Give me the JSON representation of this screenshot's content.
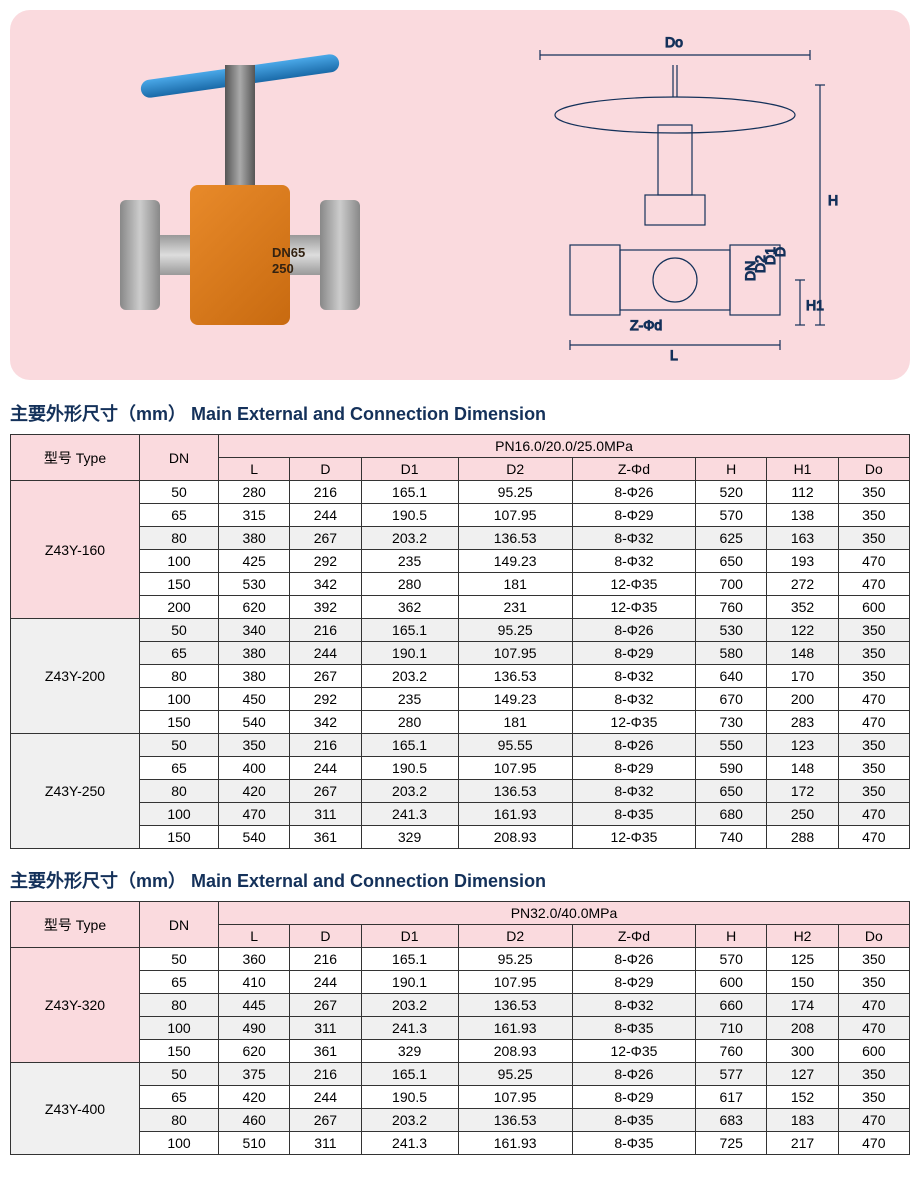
{
  "colors": {
    "panel_bg": "#fadade",
    "title_color": "#14315a",
    "border": "#333333",
    "shade_row": "#f0f0f0"
  },
  "valve_marking": {
    "line1": "DN65",
    "line2": "250"
  },
  "diagram_labels": {
    "Do": "Do",
    "H": "H",
    "H1": "H1",
    "D": "D",
    "D1": "D1",
    "D2": "D2",
    "DN": "DN",
    "L": "L",
    "Zphi": "Z-Φd"
  },
  "section1": {
    "title": "主要外形尺寸（mm） Main External and Connection Dimension",
    "header_group": "PN16.0/20.0/25.0MPa",
    "type_label": "型号 Type",
    "dn_label": "DN",
    "cols": [
      "L",
      "D",
      "D1",
      "D2",
      "Z-Φd",
      "H",
      "H1",
      "Do"
    ],
    "groups": [
      {
        "type": "Z43Y-160",
        "rows": [
          {
            "dn": "50",
            "v": [
              "280",
              "216",
              "165.1",
              "95.25",
              "8-Φ26",
              "520",
              "112",
              "350"
            ],
            "shade": false
          },
          {
            "dn": "65",
            "v": [
              "315",
              "244",
              "190.5",
              "107.95",
              "8-Φ29",
              "570",
              "138",
              "350"
            ],
            "shade": false
          },
          {
            "dn": "80",
            "v": [
              "380",
              "267",
              "203.2",
              "136.53",
              "8-Φ32",
              "625",
              "163",
              "350"
            ],
            "shade": true
          },
          {
            "dn": "100",
            "v": [
              "425",
              "292",
              "235",
              "149.23",
              "8-Φ32",
              "650",
              "193",
              "470"
            ],
            "shade": false
          },
          {
            "dn": "150",
            "v": [
              "530",
              "342",
              "280",
              "181",
              "12-Φ35",
              "700",
              "272",
              "470"
            ],
            "shade": false
          },
          {
            "dn": "200",
            "v": [
              "620",
              "392",
              "362",
              "231",
              "12-Φ35",
              "760",
              "352",
              "600"
            ],
            "shade": false
          }
        ]
      },
      {
        "type": "Z43Y-200",
        "rows": [
          {
            "dn": "50",
            "v": [
              "340",
              "216",
              "165.1",
              "95.25",
              "8-Φ26",
              "530",
              "122",
              "350"
            ],
            "shade": true
          },
          {
            "dn": "65",
            "v": [
              "380",
              "244",
              "190.1",
              "107.95",
              "8-Φ29",
              "580",
              "148",
              "350"
            ],
            "shade": true
          },
          {
            "dn": "80",
            "v": [
              "380",
              "267",
              "203.2",
              "136.53",
              "8-Φ32",
              "640",
              "170",
              "350"
            ],
            "shade": false
          },
          {
            "dn": "100",
            "v": [
              "450",
              "292",
              "235",
              "149.23",
              "8-Φ32",
              "670",
              "200",
              "470"
            ],
            "shade": false
          },
          {
            "dn": "150",
            "v": [
              "540",
              "342",
              "280",
              "181",
              "12-Φ35",
              "730",
              "283",
              "470"
            ],
            "shade": false
          }
        ]
      },
      {
        "type": "Z43Y-250",
        "rows": [
          {
            "dn": "50",
            "v": [
              "350",
              "216",
              "165.1",
              "95.55",
              "8-Φ26",
              "550",
              "123",
              "350"
            ],
            "shade": true
          },
          {
            "dn": "65",
            "v": [
              "400",
              "244",
              "190.5",
              "107.95",
              "8-Φ29",
              "590",
              "148",
              "350"
            ],
            "shade": false
          },
          {
            "dn": "80",
            "v": [
              "420",
              "267",
              "203.2",
              "136.53",
              "8-Φ32",
              "650",
              "172",
              "350"
            ],
            "shade": true
          },
          {
            "dn": "100",
            "v": [
              "470",
              "311",
              "241.3",
              "161.93",
              "8-Φ35",
              "680",
              "250",
              "470"
            ],
            "shade": true
          },
          {
            "dn": "150",
            "v": [
              "540",
              "361",
              "329",
              "208.93",
              "12-Φ35",
              "740",
              "288",
              "470"
            ],
            "shade": false
          }
        ]
      }
    ]
  },
  "section2": {
    "title": "主要外形尺寸（mm） Main External and Connection Dimension",
    "header_group": "PN32.0/40.0MPa",
    "type_label": "型号 Type",
    "dn_label": "DN",
    "cols": [
      "L",
      "D",
      "D1",
      "D2",
      "Z-Φd",
      "H",
      "H2",
      "Do"
    ],
    "groups": [
      {
        "type": "Z43Y-320",
        "rows": [
          {
            "dn": "50",
            "v": [
              "360",
              "216",
              "165.1",
              "95.25",
              "8-Φ26",
              "570",
              "125",
              "350"
            ],
            "shade": false
          },
          {
            "dn": "65",
            "v": [
              "410",
              "244",
              "190.1",
              "107.95",
              "8-Φ29",
              "600",
              "150",
              "350"
            ],
            "shade": false
          },
          {
            "dn": "80",
            "v": [
              "445",
              "267",
              "203.2",
              "136.53",
              "8-Φ32",
              "660",
              "174",
              "470"
            ],
            "shade": true
          },
          {
            "dn": "100",
            "v": [
              "490",
              "311",
              "241.3",
              "161.93",
              "8-Φ35",
              "710",
              "208",
              "470"
            ],
            "shade": true
          },
          {
            "dn": "150",
            "v": [
              "620",
              "361",
              "329",
              "208.93",
              "12-Φ35",
              "760",
              "300",
              "600"
            ],
            "shade": false
          }
        ]
      },
      {
        "type": "Z43Y-400",
        "rows": [
          {
            "dn": "50",
            "v": [
              "375",
              "216",
              "165.1",
              "95.25",
              "8-Φ26",
              "577",
              "127",
              "350"
            ],
            "shade": true
          },
          {
            "dn": "65",
            "v": [
              "420",
              "244",
              "190.5",
              "107.95",
              "8-Φ29",
              "617",
              "152",
              "350"
            ],
            "shade": false
          },
          {
            "dn": "80",
            "v": [
              "460",
              "267",
              "203.2",
              "136.53",
              "8-Φ35",
              "683",
              "183",
              "470"
            ],
            "shade": true
          },
          {
            "dn": "100",
            "v": [
              "510",
              "311",
              "241.3",
              "161.93",
              "8-Φ35",
              "725",
              "217",
              "470"
            ],
            "shade": false
          }
        ]
      }
    ]
  }
}
